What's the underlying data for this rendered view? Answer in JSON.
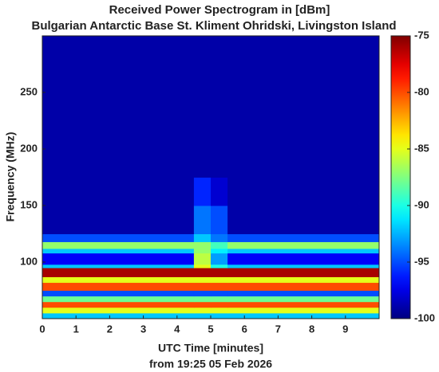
{
  "chart_data": {
    "type": "heatmap",
    "title": "Received Power Spectrogram in [dBm]",
    "subtitle": "Bulgarian Antarctic Base St. Kliment Ohridski, Livingston Island",
    "x_label": "UTC Time [minutes]",
    "x_label_note": "from 19:25 05 Feb 2026",
    "y_label": "Frequency (MHz)",
    "x": [
      0,
      4.5,
      5,
      5.5,
      10
    ],
    "y": [
      50,
      55,
      60,
      65,
      70,
      75,
      82,
      87,
      95,
      98,
      108,
      112,
      118,
      125,
      150,
      175,
      300
    ],
    "z": [
      [
        -92,
        -92,
        -92,
        -92
      ],
      [
        -85,
        -85,
        -85,
        -85
      ],
      [
        -80,
        -80,
        -80,
        -80
      ],
      [
        -88,
        -88,
        -88,
        -88
      ],
      [
        -95,
        -95,
        -95,
        -95
      ],
      [
        -80,
        -80,
        -80,
        -80
      ],
      [
        -85,
        -85,
        -85,
        -85
      ],
      [
        -76,
        -76,
        -76,
        -76
      ],
      [
        -92,
        -85,
        -90,
        -92
      ],
      [
        -97,
        -86,
        -93,
        -97
      ],
      [
        -92,
        -87,
        -91,
        -92
      ],
      [
        -87,
        -87,
        -89,
        -87
      ],
      [
        -95,
        -92,
        -94,
        -95
      ],
      [
        -99,
        -94,
        -95,
        -99
      ],
      [
        -99,
        -96,
        -98,
        -99
      ],
      [
        -99,
        -99,
        -99,
        -99
      ]
    ],
    "colormap": "jet",
    "clim": [
      -100,
      -75
    ],
    "cticks": [
      -75,
      -80,
      -85,
      -90,
      -95,
      -100
    ],
    "xlim": [
      0,
      10
    ],
    "xticks": [
      0,
      1,
      2,
      3,
      4,
      5,
      6,
      7,
      8,
      9
    ],
    "ylim": [
      50,
      300
    ],
    "yticks": [
      100,
      150,
      200,
      250
    ]
  }
}
